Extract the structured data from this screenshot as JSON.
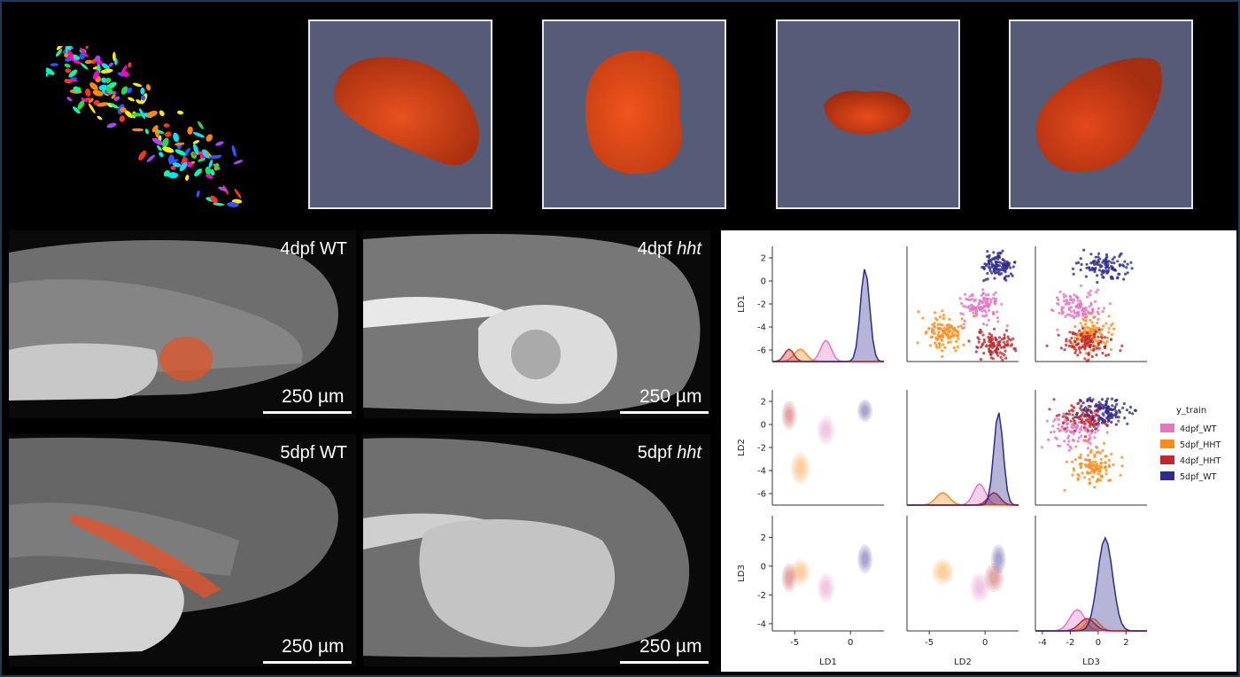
{
  "renders": [
    {
      "id": "render-1"
    },
    {
      "id": "render-2"
    },
    {
      "id": "render-3"
    },
    {
      "id": "render-4"
    }
  ],
  "micrographs": [
    {
      "label_main": "4dpf WT",
      "label_italic": "",
      "scale": "250 µm"
    },
    {
      "label_main": "4dpf ",
      "label_italic": "hht",
      "scale": "250 µm"
    },
    {
      "label_main": "5dpf WT",
      "label_italic": "",
      "scale": "250 µm"
    },
    {
      "label_main": "5dpf ",
      "label_italic": "hht",
      "scale": "250 µm"
    }
  ],
  "colors": {
    "orange_render": "#e5481b",
    "render_bg": "#565b78",
    "4dpf_WT": "#e377c2",
    "5dpf_HHT": "#ff8c1a",
    "4dpf_HHT": "#c0282d",
    "5dpf_WT": "#2d2b8f"
  },
  "chart_data": {
    "type": "scatter",
    "subtype": "pairplot",
    "variables": [
      "LD1",
      "LD2",
      "LD3"
    ],
    "diag": "histogram+kde",
    "upper": "scatter",
    "lower": "kde",
    "legend_title": "y_train",
    "legend_position": "right",
    "legend": [
      "4dpf_WT",
      "5dpf_HHT",
      "4dpf_HHT",
      "5dpf_WT"
    ],
    "axes": {
      "LD1": {
        "range": [
          -7,
          3
        ],
        "ticks": [
          "2",
          "0",
          "-2",
          "-4",
          "-6"
        ],
        "xticks": [
          "-5",
          "0"
        ]
      },
      "LD2": {
        "range": [
          -7,
          3
        ],
        "ticks": [
          "2",
          "0",
          "-2",
          "-4",
          "-6"
        ],
        "xticks": [
          "-5",
          "0"
        ]
      },
      "LD3": {
        "range": [
          -4.5,
          3.5
        ],
        "ticks": [
          "2",
          "0",
          "-2",
          "-4"
        ],
        "xticks": [
          "-4",
          "-2",
          "0",
          "2"
        ]
      }
    },
    "groups": {
      "4dpf_WT": {
        "LD1_center": -2.2,
        "LD2_center": -0.5,
        "LD3_center": -1.5
      },
      "5dpf_HHT": {
        "LD1_center": -4.5,
        "LD2_center": -3.8,
        "LD3_center": -0.4
      },
      "4dpf_HHT": {
        "LD1_center": -5.5,
        "LD2_center": 0.8,
        "LD3_center": -0.8
      },
      "5dpf_WT": {
        "LD1_center": 1.3,
        "LD2_center": 1.2,
        "LD3_center": 0.5
      }
    }
  }
}
